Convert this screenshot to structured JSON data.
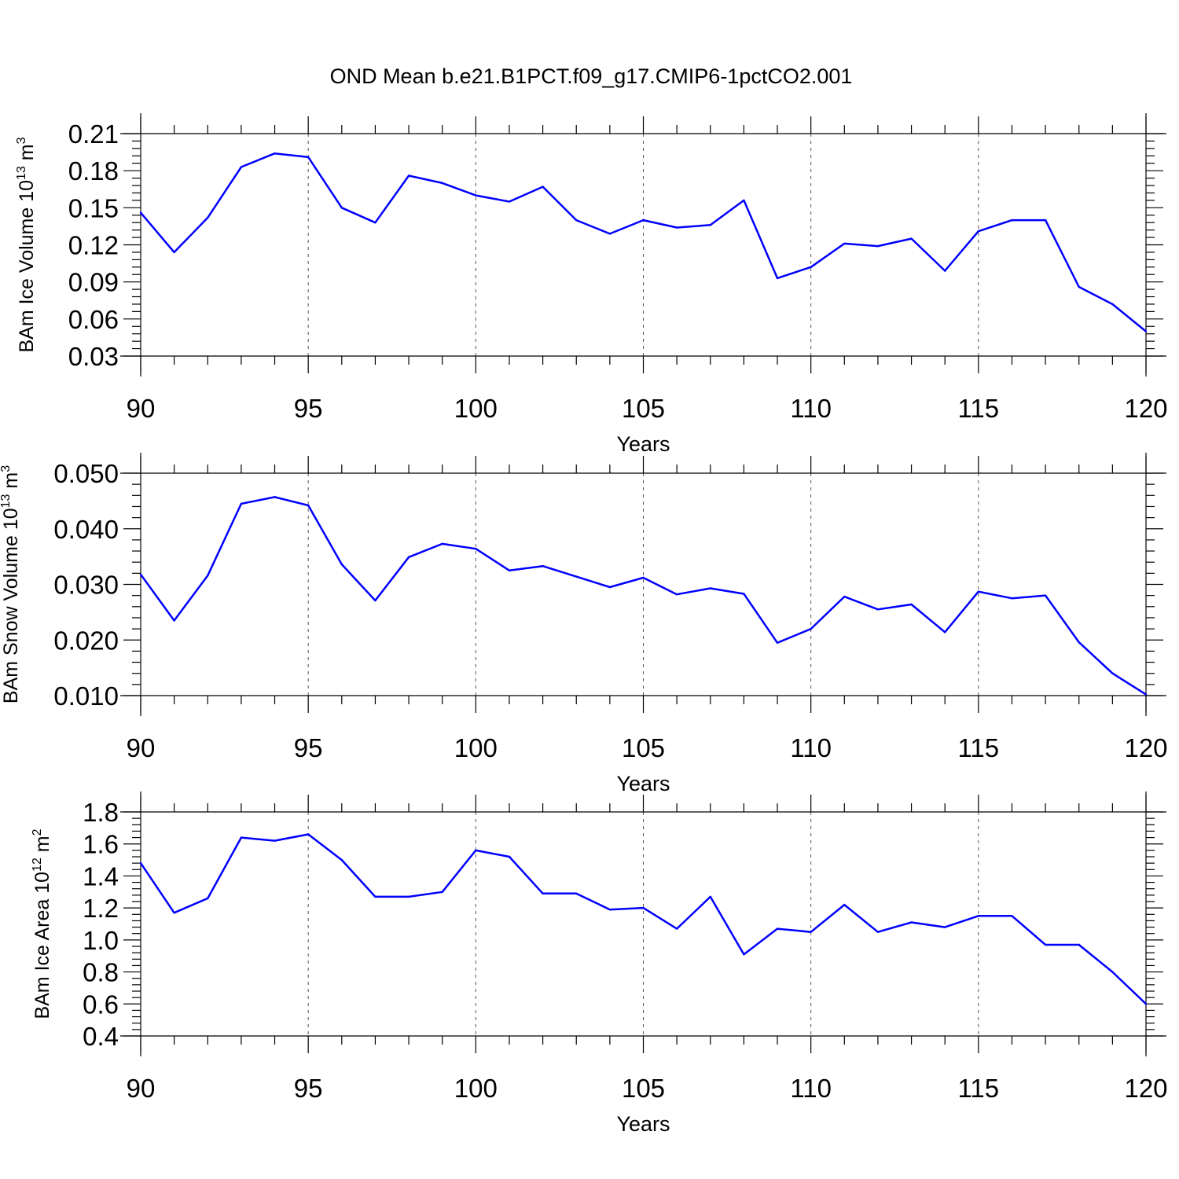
{
  "title": "OND Mean b.e21.B1PCT.f09_g17.CMIP6-1pctCO2.001",
  "line_color": "#0000ff",
  "chart_data": [
    {
      "type": "line",
      "xlabel": "Years",
      "ylabel": {
        "prefix": "BAm Ice Volume 10",
        "exp": "13",
        "unit": " m",
        "unit_exp": "3"
      },
      "xlim": [
        90,
        120
      ],
      "ylim": [
        0.03,
        0.21
      ],
      "xticks": [
        90,
        95,
        100,
        105,
        110,
        115,
        120
      ],
      "xtick_labels": [
        "90",
        "95",
        "100",
        "105",
        "110",
        "115",
        "120"
      ],
      "yticks": [
        0.03,
        0.06,
        0.09,
        0.12,
        0.15,
        0.18,
        0.21
      ],
      "ytick_labels": [
        "0.03",
        "0.06",
        "0.09",
        "0.12",
        "0.15",
        "0.18",
        "0.21"
      ],
      "grid": "dashed vertical at major x ticks",
      "x": [
        90,
        91,
        92,
        93,
        94,
        95,
        96,
        97,
        98,
        99,
        100,
        101,
        102,
        103,
        104,
        105,
        106,
        107,
        108,
        109,
        110,
        111,
        112,
        113,
        114,
        115,
        116,
        117,
        118,
        119,
        120
      ],
      "y": [
        0.146,
        0.114,
        0.142,
        0.183,
        0.194,
        0.191,
        0.15,
        0.138,
        0.176,
        0.17,
        0.16,
        0.155,
        0.167,
        0.14,
        0.129,
        0.14,
        0.134,
        0.136,
        0.156,
        0.093,
        0.102,
        0.121,
        0.119,
        0.125,
        0.099,
        0.131,
        0.14,
        0.14,
        0.086,
        0.072,
        0.05
      ]
    },
    {
      "type": "line",
      "xlabel": "Years",
      "ylabel": {
        "prefix": "BAm Snow Volume 10",
        "exp": "13",
        "unit": " m",
        "unit_exp": "3"
      },
      "xlim": [
        90,
        120
      ],
      "ylim": [
        0.01,
        0.05
      ],
      "xticks": [
        90,
        95,
        100,
        105,
        110,
        115,
        120
      ],
      "xtick_labels": [
        "90",
        "95",
        "100",
        "105",
        "110",
        "115",
        "120"
      ],
      "yticks": [
        0.01,
        0.02,
        0.03,
        0.04,
        0.05
      ],
      "ytick_labels": [
        "0.010",
        "0.020",
        "0.030",
        "0.040",
        "0.050"
      ],
      "grid": "dashed vertical at major x ticks",
      "x": [
        90,
        91,
        92,
        93,
        94,
        95,
        96,
        97,
        98,
        99,
        100,
        101,
        102,
        103,
        104,
        105,
        106,
        107,
        108,
        109,
        110,
        111,
        112,
        113,
        114,
        115,
        116,
        117,
        118,
        119,
        120
      ],
      "y": [
        0.0318,
        0.0235,
        0.0316,
        0.0445,
        0.0457,
        0.0442,
        0.0336,
        0.0271,
        0.0349,
        0.0373,
        0.0364,
        0.0325,
        0.0333,
        0.0314,
        0.0295,
        0.0312,
        0.0282,
        0.0293,
        0.0283,
        0.0195,
        0.022,
        0.0278,
        0.0255,
        0.0264,
        0.0214,
        0.0287,
        0.0275,
        0.028,
        0.0196,
        0.014,
        0.0102
      ]
    },
    {
      "type": "line",
      "xlabel": "Years",
      "ylabel": {
        "prefix": "BAm Ice Area 10",
        "exp": "12",
        "unit": " m",
        "unit_exp": "2"
      },
      "xlim": [
        90,
        120
      ],
      "ylim": [
        0.4,
        1.8
      ],
      "xticks": [
        90,
        95,
        100,
        105,
        110,
        115,
        120
      ],
      "xtick_labels": [
        "90",
        "95",
        "100",
        "105",
        "110",
        "115",
        "120"
      ],
      "yticks": [
        0.4,
        0.6,
        0.8,
        1.0,
        1.2,
        1.4,
        1.6,
        1.8
      ],
      "ytick_labels": [
        "0.4",
        "0.6",
        "0.8",
        "1.0",
        "1.2",
        "1.4",
        "1.6",
        "1.8"
      ],
      "grid": "dashed vertical at major x ticks",
      "x": [
        90,
        91,
        92,
        93,
        94,
        95,
        96,
        97,
        98,
        99,
        100,
        101,
        102,
        103,
        104,
        105,
        106,
        107,
        108,
        109,
        110,
        111,
        112,
        113,
        114,
        115,
        116,
        117,
        118,
        119,
        120
      ],
      "y": [
        1.48,
        1.17,
        1.26,
        1.64,
        1.62,
        1.66,
        1.5,
        1.27,
        1.27,
        1.3,
        1.56,
        1.52,
        1.29,
        1.29,
        1.19,
        1.2,
        1.07,
        1.27,
        0.91,
        1.07,
        1.05,
        1.22,
        1.05,
        1.11,
        1.08,
        1.15,
        1.15,
        0.97,
        0.97,
        0.8,
        0.6
      ]
    }
  ]
}
